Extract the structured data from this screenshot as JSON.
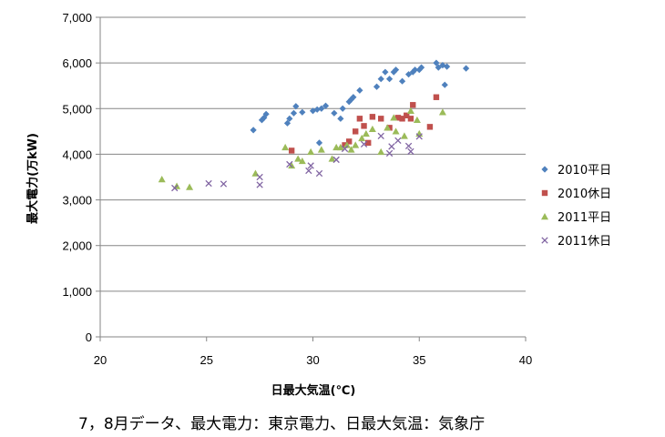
{
  "chart_data": {
    "type": "scatter",
    "xlabel": "日最大気温(℃)",
    "ylabel": "最大電力(万kW)",
    "xlim": [
      20,
      40
    ],
    "ylim": [
      0,
      7000
    ],
    "x_ticks": [
      20,
      25,
      30,
      35,
      40
    ],
    "x_tick_labels": [
      "20",
      "25",
      "30",
      "35",
      "40"
    ],
    "y_ticks": [
      0,
      1000,
      2000,
      3000,
      4000,
      5000,
      6000,
      7000
    ],
    "y_tick_labels": [
      "0",
      "1,000",
      "2,000",
      "3,000",
      "4,000",
      "5,000",
      "6,000",
      "7,000"
    ],
    "grid": "horizontal",
    "legend_position": "right",
    "series": [
      {
        "name": "2010平日",
        "marker": "diamond",
        "color": "#4f81bd",
        "points": [
          [
            27.2,
            4530
          ],
          [
            27.6,
            4750
          ],
          [
            27.7,
            4800
          ],
          [
            27.8,
            4880
          ],
          [
            28.8,
            4680
          ],
          [
            28.9,
            4780
          ],
          [
            29.1,
            4900
          ],
          [
            29.2,
            5050
          ],
          [
            29.5,
            4920
          ],
          [
            30.0,
            4950
          ],
          [
            30.2,
            4980
          ],
          [
            30.3,
            4250
          ],
          [
            30.4,
            5000
          ],
          [
            30.6,
            5060
          ],
          [
            31.0,
            4900
          ],
          [
            31.3,
            4780
          ],
          [
            31.4,
            5000
          ],
          [
            31.7,
            5150
          ],
          [
            31.8,
            5200
          ],
          [
            31.9,
            5250
          ],
          [
            32.2,
            5400
          ],
          [
            33.0,
            5480
          ],
          [
            33.2,
            5650
          ],
          [
            33.4,
            5800
          ],
          [
            33.6,
            5650
          ],
          [
            33.8,
            5800
          ],
          [
            33.9,
            5850
          ],
          [
            34.2,
            5600
          ],
          [
            34.5,
            5750
          ],
          [
            34.7,
            5800
          ],
          [
            34.8,
            5850
          ],
          [
            35.0,
            5850
          ],
          [
            35.1,
            5900
          ],
          [
            35.8,
            6000
          ],
          [
            35.9,
            5900
          ],
          [
            36.1,
            5950
          ],
          [
            36.3,
            5920
          ],
          [
            36.2,
            5520
          ],
          [
            37.2,
            5880
          ]
        ]
      },
      {
        "name": "2010休日",
        "marker": "square",
        "color": "#c0504d",
        "points": [
          [
            29.0,
            4080
          ],
          [
            31.5,
            4200
          ],
          [
            31.7,
            4280
          ],
          [
            32.0,
            4500
          ],
          [
            32.2,
            4780
          ],
          [
            32.4,
            4620
          ],
          [
            32.6,
            4250
          ],
          [
            32.8,
            4820
          ],
          [
            33.2,
            4780
          ],
          [
            33.6,
            4580
          ],
          [
            34.0,
            4800
          ],
          [
            34.2,
            4780
          ],
          [
            34.4,
            4850
          ],
          [
            34.6,
            4780
          ],
          [
            34.7,
            5080
          ],
          [
            35.5,
            4600
          ],
          [
            35.8,
            5250
          ]
        ]
      },
      {
        "name": "2011平日",
        "marker": "triangle",
        "color": "#9bbb59",
        "points": [
          [
            22.9,
            3450
          ],
          [
            23.6,
            3300
          ],
          [
            24.2,
            3280
          ],
          [
            27.3,
            3580
          ],
          [
            28.7,
            4150
          ],
          [
            29.0,
            3750
          ],
          [
            29.3,
            3900
          ],
          [
            29.5,
            3850
          ],
          [
            29.9,
            4050
          ],
          [
            30.4,
            4100
          ],
          [
            30.9,
            3900
          ],
          [
            31.1,
            4150
          ],
          [
            31.3,
            4150
          ],
          [
            31.6,
            4200
          ],
          [
            31.8,
            4100
          ],
          [
            32.0,
            4200
          ],
          [
            32.3,
            4350
          ],
          [
            32.5,
            4450
          ],
          [
            32.8,
            4550
          ],
          [
            33.2,
            4050
          ],
          [
            33.5,
            4580
          ],
          [
            33.8,
            4800
          ],
          [
            33.9,
            4500
          ],
          [
            34.3,
            4400
          ],
          [
            34.6,
            4950
          ],
          [
            34.9,
            4750
          ],
          [
            35.0,
            4450
          ],
          [
            36.1,
            4920
          ]
        ]
      },
      {
        "name": "2011休日",
        "marker": "x",
        "color": "#8064a2",
        "points": [
          [
            23.5,
            3260
          ],
          [
            25.1,
            3360
          ],
          [
            25.8,
            3350
          ],
          [
            27.5,
            3330
          ],
          [
            27.5,
            3500
          ],
          [
            28.9,
            3780
          ],
          [
            29.8,
            3640
          ],
          [
            29.9,
            3750
          ],
          [
            30.3,
            3580
          ],
          [
            31.1,
            3880
          ],
          [
            31.5,
            4120
          ],
          [
            32.4,
            4220
          ],
          [
            33.2,
            4400
          ],
          [
            33.6,
            4020
          ],
          [
            33.7,
            4170
          ],
          [
            34.0,
            4300
          ],
          [
            34.5,
            4180
          ],
          [
            34.6,
            4060
          ],
          [
            35.0,
            4390
          ]
        ]
      }
    ]
  },
  "caption": "7，8月データ、最大電力：東京電力、日最大気温：気象庁"
}
